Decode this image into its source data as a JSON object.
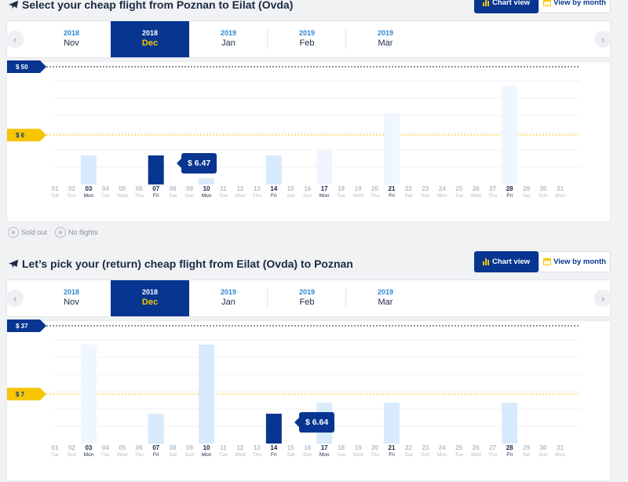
{
  "colors": {
    "brand": "#073590",
    "accent": "#f7c600",
    "bar_light": "#eff6fe",
    "bar_mid": "#d8eafc"
  },
  "outbound": {
    "title": "Select your cheap flight from Poznan to Eilat (Ovda)",
    "chart_view_label": "Chart view",
    "view_by_month_label": "View by month",
    "months": [
      {
        "year": "2018",
        "month": "Nov",
        "active": false
      },
      {
        "year": "2018",
        "month": "Dec",
        "active": true
      },
      {
        "year": "2019",
        "month": "Jan",
        "active": false
      },
      {
        "year": "2019",
        "month": "Feb",
        "active": false
      },
      {
        "year": "2019",
        "month": "Mar",
        "active": false
      }
    ],
    "max_label": "$ 50",
    "min_label": "$ 6",
    "selected_price": "$ 6.47",
    "selected_day": "07",
    "bars": [
      {
        "day": "03",
        "level": 0.29,
        "tone": "mid"
      },
      {
        "day": "07",
        "level": 0.29,
        "tone": "selected"
      },
      {
        "day": "10",
        "level": 0.06,
        "tone": "mid"
      },
      {
        "day": "14",
        "level": 0.29,
        "tone": "mid"
      },
      {
        "day": "17",
        "level": 0.35,
        "tone": "light"
      },
      {
        "day": "21",
        "level": 0.72,
        "tone": "light"
      },
      {
        "day": "28",
        "level": 1.0,
        "tone": "light"
      }
    ]
  },
  "legend": {
    "sold_out": "Sold out",
    "no_flights": "No flights"
  },
  "return": {
    "title": "Let’s pick your (return) cheap flight from Eilat (Ovda) to Poznan",
    "chart_view_label": "Chart view",
    "view_by_month_label": "View by month",
    "months": [
      {
        "year": "2018",
        "month": "Nov",
        "active": false
      },
      {
        "year": "2018",
        "month": "Dec",
        "active": true
      },
      {
        "year": "2019",
        "month": "Jan",
        "active": false
      },
      {
        "year": "2019",
        "month": "Feb",
        "active": false
      },
      {
        "year": "2019",
        "month": "Mar",
        "active": false
      }
    ],
    "max_label": "$ 37",
    "min_label": "$ 7",
    "selected_price": "$ 6.64",
    "selected_day": "14",
    "bars": [
      {
        "day": "03",
        "level": 1.0,
        "tone": "light"
      },
      {
        "day": "07",
        "level": 0.3,
        "tone": "mid"
      },
      {
        "day": "10",
        "level": 1.0,
        "tone": "mid"
      },
      {
        "day": "14",
        "level": 0.3,
        "tone": "selected"
      },
      {
        "day": "17",
        "level": 0.41,
        "tone": "mid"
      },
      {
        "day": "21",
        "level": 0.41,
        "tone": "mid"
      },
      {
        "day": "28",
        "level": 0.41,
        "tone": "mid"
      }
    ]
  },
  "days": [
    {
      "d": "01",
      "w": "Sat"
    },
    {
      "d": "02",
      "w": "Sun"
    },
    {
      "d": "03",
      "w": "Mon"
    },
    {
      "d": "04",
      "w": "Tue"
    },
    {
      "d": "05",
      "w": "Wed"
    },
    {
      "d": "06",
      "w": "Thu"
    },
    {
      "d": "07",
      "w": "Fri"
    },
    {
      "d": "08",
      "w": "Sat"
    },
    {
      "d": "09",
      "w": "Sun"
    },
    {
      "d": "10",
      "w": "Mon"
    },
    {
      "d": "11",
      "w": "Tue"
    },
    {
      "d": "12",
      "w": "Wed"
    },
    {
      "d": "13",
      "w": "Thu"
    },
    {
      "d": "14",
      "w": "Fri"
    },
    {
      "d": "15",
      "w": "Sat"
    },
    {
      "d": "16",
      "w": "Sun"
    },
    {
      "d": "17",
      "w": "Mon"
    },
    {
      "d": "18",
      "w": "Tue"
    },
    {
      "d": "19",
      "w": "Wed"
    },
    {
      "d": "20",
      "w": "Thu"
    },
    {
      "d": "21",
      "w": "Fri"
    },
    {
      "d": "22",
      "w": "Sat"
    },
    {
      "d": "23",
      "w": "Sun"
    },
    {
      "d": "24",
      "w": "Mon"
    },
    {
      "d": "25",
      "w": "Tue"
    },
    {
      "d": "26",
      "w": "Wed"
    },
    {
      "d": "27",
      "w": "Thu"
    },
    {
      "d": "28",
      "w": "Fri"
    },
    {
      "d": "29",
      "w": "Sat"
    },
    {
      "d": "30",
      "w": "Sun"
    },
    {
      "d": "31",
      "w": "Mon"
    }
  ]
}
